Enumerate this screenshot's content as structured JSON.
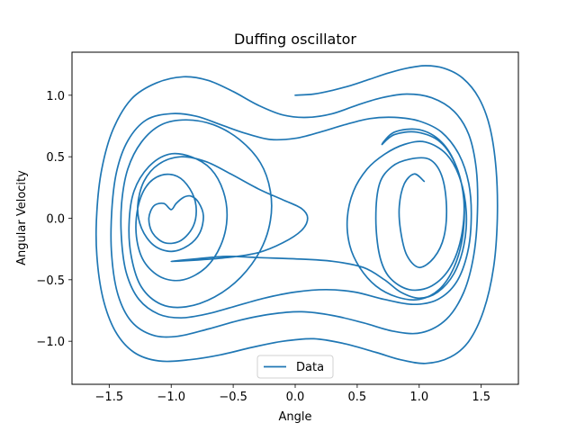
{
  "chart_data": {
    "type": "line",
    "title": "Duffing oscillator",
    "xlabel": "Angle",
    "ylabel": "Angular Velocity",
    "xlim": [
      -1.8,
      1.8
    ],
    "ylim": [
      -1.35,
      1.35
    ],
    "xticks": [
      -1.5,
      -1.0,
      -0.5,
      0.0,
      0.5,
      1.0,
      1.5
    ],
    "xtick_labels": [
      "−1.5",
      "−1.0",
      "−0.5",
      "0.0",
      "0.5",
      "1.0",
      "1.5"
    ],
    "yticks": [
      -1.0,
      -0.5,
      0.0,
      0.5,
      1.0
    ],
    "ytick_labels": [
      "−1.0",
      "−0.5",
      "0.0",
      "0.5",
      "1.0"
    ],
    "grid": false,
    "legend": {
      "position": "bottom-center",
      "entries": [
        "Data"
      ]
    },
    "series": [
      {
        "name": "Data",
        "color": "#1f77b4",
        "points": [
          [
            0.0,
            1.0
          ],
          [
            0.15,
            1.01
          ],
          [
            0.3,
            1.04
          ],
          [
            0.45,
            1.08
          ],
          [
            0.6,
            1.13
          ],
          [
            0.75,
            1.18
          ],
          [
            0.9,
            1.22
          ],
          [
            1.05,
            1.24
          ],
          [
            1.2,
            1.22
          ],
          [
            1.35,
            1.14
          ],
          [
            1.48,
            0.98
          ],
          [
            1.57,
            0.74
          ],
          [
            1.62,
            0.4
          ],
          [
            1.63,
            0.0
          ],
          [
            1.6,
            -0.4
          ],
          [
            1.52,
            -0.75
          ],
          [
            1.4,
            -1.0
          ],
          [
            1.25,
            -1.13
          ],
          [
            1.05,
            -1.18
          ],
          [
            0.85,
            -1.15
          ],
          [
            0.65,
            -1.09
          ],
          [
            0.4,
            -1.02
          ],
          [
            0.15,
            -0.98
          ],
          [
            -0.1,
            -1.0
          ],
          [
            -0.35,
            -1.05
          ],
          [
            -0.6,
            -1.11
          ],
          [
            -0.85,
            -1.15
          ],
          [
            -1.1,
            -1.16
          ],
          [
            -1.3,
            -1.09
          ],
          [
            -1.45,
            -0.92
          ],
          [
            -1.55,
            -0.65
          ],
          [
            -1.6,
            -0.3
          ],
          [
            -1.6,
            0.05
          ],
          [
            -1.56,
            0.4
          ],
          [
            -1.47,
            0.72
          ],
          [
            -1.32,
            0.97
          ],
          [
            -1.12,
            1.1
          ],
          [
            -0.9,
            1.15
          ],
          [
            -0.7,
            1.12
          ],
          [
            -0.5,
            1.03
          ],
          [
            -0.3,
            0.92
          ],
          [
            -0.1,
            0.84
          ],
          [
            0.1,
            0.82
          ],
          [
            0.3,
            0.85
          ],
          [
            0.5,
            0.92
          ],
          [
            0.7,
            0.98
          ],
          [
            0.9,
            1.01
          ],
          [
            1.1,
            0.98
          ],
          [
            1.28,
            0.87
          ],
          [
            1.4,
            0.68
          ],
          [
            1.46,
            0.4
          ],
          [
            1.47,
            0.05
          ],
          [
            1.44,
            -0.3
          ],
          [
            1.36,
            -0.6
          ],
          [
            1.22,
            -0.82
          ],
          [
            1.02,
            -0.93
          ],
          [
            0.8,
            -0.92
          ],
          [
            0.55,
            -0.85
          ],
          [
            0.3,
            -0.79
          ],
          [
            0.05,
            -0.76
          ],
          [
            -0.2,
            -0.78
          ],
          [
            -0.45,
            -0.83
          ],
          [
            -0.7,
            -0.9
          ],
          [
            -0.95,
            -0.96
          ],
          [
            -1.15,
            -0.95
          ],
          [
            -1.32,
            -0.84
          ],
          [
            -1.43,
            -0.62
          ],
          [
            -1.48,
            -0.3
          ],
          [
            -1.48,
            0.05
          ],
          [
            -1.44,
            0.38
          ],
          [
            -1.35,
            0.63
          ],
          [
            -1.2,
            0.8
          ],
          [
            -1.0,
            0.85
          ],
          [
            -0.8,
            0.83
          ],
          [
            -0.6,
            0.76
          ],
          [
            -0.4,
            0.69
          ],
          [
            -0.2,
            0.64
          ],
          [
            0.0,
            0.65
          ],
          [
            0.2,
            0.7
          ],
          [
            0.4,
            0.76
          ],
          [
            0.6,
            0.81
          ],
          [
            0.8,
            0.82
          ],
          [
            1.0,
            0.79
          ],
          [
            1.18,
            0.7
          ],
          [
            1.32,
            0.52
          ],
          [
            1.4,
            0.28
          ],
          [
            1.42,
            0.0
          ],
          [
            1.39,
            -0.28
          ],
          [
            1.3,
            -0.52
          ],
          [
            1.15,
            -0.66
          ],
          [
            0.95,
            -0.7
          ],
          [
            0.72,
            -0.66
          ],
          [
            0.48,
            -0.6
          ],
          [
            0.25,
            -0.58
          ],
          [
            0.0,
            -0.6
          ],
          [
            -0.25,
            -0.65
          ],
          [
            -0.5,
            -0.72
          ],
          [
            -0.72,
            -0.78
          ],
          [
            -0.92,
            -0.81
          ],
          [
            -1.1,
            -0.78
          ],
          [
            -1.26,
            -0.66
          ],
          [
            -1.36,
            -0.45
          ],
          [
            -1.4,
            -0.18
          ],
          [
            -1.4,
            0.12
          ],
          [
            -1.35,
            0.4
          ],
          [
            -1.24,
            0.62
          ],
          [
            -1.08,
            0.76
          ],
          [
            -0.88,
            0.8
          ],
          [
            -0.66,
            0.76
          ],
          [
            -0.45,
            0.64
          ],
          [
            -0.28,
            0.45
          ],
          [
            -0.2,
            0.22
          ],
          [
            -0.2,
            -0.02
          ],
          [
            -0.28,
            -0.26
          ],
          [
            -0.44,
            -0.48
          ],
          [
            -0.65,
            -0.64
          ],
          [
            -0.88,
            -0.72
          ],
          [
            -1.08,
            -0.7
          ],
          [
            -1.24,
            -0.56
          ],
          [
            -1.32,
            -0.32
          ],
          [
            -1.34,
            -0.05
          ],
          [
            -1.3,
            0.22
          ],
          [
            -1.18,
            0.42
          ],
          [
            -1.02,
            0.52
          ],
          [
            -0.84,
            0.5
          ],
          [
            -0.68,
            0.4
          ],
          [
            -0.58,
            0.22
          ],
          [
            -0.55,
            0.0
          ],
          [
            -0.6,
            -0.22
          ],
          [
            -0.72,
            -0.4
          ],
          [
            -0.9,
            -0.5
          ],
          [
            -1.08,
            -0.48
          ],
          [
            -1.22,
            -0.35
          ],
          [
            -1.28,
            -0.15
          ],
          [
            -1.27,
            0.08
          ],
          [
            -1.2,
            0.26
          ],
          [
            -1.08,
            0.35
          ],
          [
            -0.95,
            0.34
          ],
          [
            -0.85,
            0.24
          ],
          [
            -0.8,
            0.1
          ],
          [
            -0.82,
            -0.06
          ],
          [
            -0.92,
            -0.18
          ],
          [
            -1.05,
            -0.2
          ],
          [
            -1.15,
            -0.12
          ],
          [
            -1.18,
            0.0
          ],
          [
            -1.14,
            0.1
          ],
          [
            -1.06,
            0.12
          ],
          [
            -1.0,
            0.07
          ],
          [
            -0.96,
            0.12
          ],
          [
            -0.9,
            0.17
          ],
          [
            -0.84,
            0.18
          ],
          [
            -0.78,
            0.13
          ],
          [
            -0.74,
            0.02
          ],
          [
            -0.77,
            -0.12
          ],
          [
            -0.86,
            -0.22
          ],
          [
            -1.0,
            -0.27
          ],
          [
            -1.14,
            -0.22
          ],
          [
            -1.24,
            -0.08
          ],
          [
            -1.27,
            0.1
          ],
          [
            -1.22,
            0.3
          ],
          [
            -1.1,
            0.44
          ],
          [
            -0.92,
            0.5
          ],
          [
            -0.72,
            0.46
          ],
          [
            -0.52,
            0.36
          ],
          [
            -0.3,
            0.24
          ],
          [
            -0.1,
            0.15
          ],
          [
            0.05,
            0.08
          ],
          [
            0.1,
            0.0
          ],
          [
            0.05,
            -0.1
          ],
          [
            -0.1,
            -0.2
          ],
          [
            -0.3,
            -0.28
          ],
          [
            -0.55,
            -0.32
          ],
          [
            -0.8,
            -0.34
          ],
          [
            -1.0,
            -0.35
          ],
          [
            -0.8,
            -0.33
          ],
          [
            -0.55,
            -0.31
          ],
          [
            -0.3,
            -0.32
          ],
          [
            0.0,
            -0.33
          ],
          [
            0.3,
            -0.35
          ],
          [
            0.55,
            -0.4
          ],
          [
            0.72,
            -0.5
          ],
          [
            0.85,
            -0.6
          ],
          [
            1.0,
            -0.65
          ],
          [
            1.15,
            -0.6
          ],
          [
            1.28,
            -0.45
          ],
          [
            1.36,
            -0.22
          ],
          [
            1.38,
            0.05
          ],
          [
            1.33,
            0.32
          ],
          [
            1.22,
            0.52
          ],
          [
            1.05,
            0.62
          ],
          [
            0.88,
            0.6
          ],
          [
            0.72,
            0.52
          ],
          [
            0.58,
            0.4
          ],
          [
            0.47,
            0.22
          ],
          [
            0.42,
            0.0
          ],
          [
            0.44,
            -0.22
          ],
          [
            0.52,
            -0.4
          ],
          [
            0.65,
            -0.55
          ],
          [
            0.82,
            -0.64
          ],
          [
            1.0,
            -0.66
          ],
          [
            1.16,
            -0.58
          ],
          [
            1.28,
            -0.4
          ],
          [
            1.35,
            -0.15
          ],
          [
            1.36,
            0.15
          ],
          [
            1.3,
            0.42
          ],
          [
            1.17,
            0.62
          ],
          [
            0.98,
            0.7
          ],
          [
            0.8,
            0.68
          ],
          [
            0.7,
            0.6
          ],
          [
            0.8,
            0.7
          ],
          [
            1.0,
            0.72
          ],
          [
            1.18,
            0.62
          ],
          [
            1.3,
            0.42
          ],
          [
            1.36,
            0.15
          ],
          [
            1.34,
            -0.15
          ],
          [
            1.25,
            -0.4
          ],
          [
            1.1,
            -0.55
          ],
          [
            0.92,
            -0.58
          ],
          [
            0.76,
            -0.48
          ],
          [
            0.68,
            -0.3
          ],
          [
            0.65,
            0.0
          ],
          [
            0.68,
            0.28
          ],
          [
            0.78,
            0.42
          ],
          [
            0.92,
            0.48
          ],
          [
            1.08,
            0.48
          ],
          [
            1.18,
            0.35
          ],
          [
            1.22,
            0.1
          ],
          [
            1.2,
            -0.15
          ],
          [
            1.12,
            -0.32
          ],
          [
            1.0,
            -0.4
          ],
          [
            0.9,
            -0.3
          ],
          [
            0.85,
            -0.1
          ],
          [
            0.84,
            0.1
          ],
          [
            0.88,
            0.28
          ],
          [
            0.96,
            0.36
          ],
          [
            1.04,
            0.3
          ]
        ]
      }
    ]
  }
}
